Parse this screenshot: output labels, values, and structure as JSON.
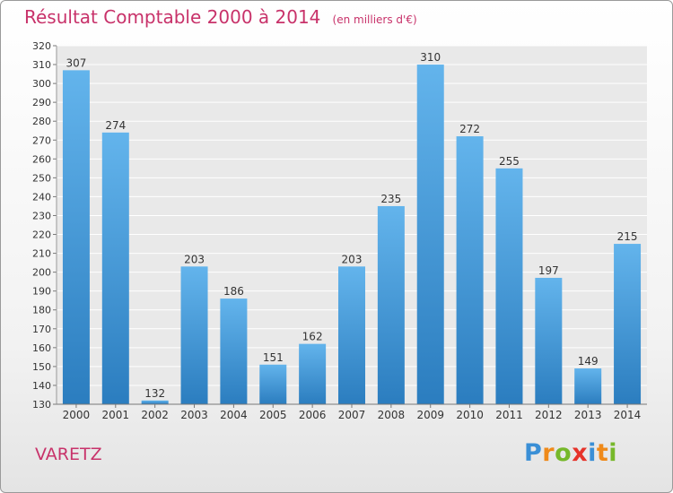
{
  "chart_data": {
    "type": "bar",
    "title": "Résultat Comptable 2000 à 2014",
    "subtitle": "(en milliers d'€)",
    "categories": [
      "2000",
      "2001",
      "2002",
      "2003",
      "2004",
      "2005",
      "2006",
      "2007",
      "2008",
      "2009",
      "2010",
      "2011",
      "2012",
      "2013",
      "2014"
    ],
    "values": [
      307,
      274,
      132,
      203,
      186,
      151,
      162,
      203,
      235,
      310,
      272,
      255,
      197,
      149,
      215
    ],
    "ylim": [
      130,
      320
    ],
    "ytick_step": 10,
    "xlabel": "",
    "ylabel": "",
    "grid": true,
    "colors": {
      "bar_light": "#63b4ec",
      "bar_dark": "#2b7dbf",
      "title": "#c8326a"
    }
  },
  "location": "VARETZ",
  "brand": {
    "name": "Proxiti",
    "letters": [
      {
        "char": "P",
        "color": "#3a8fd6"
      },
      {
        "char": "r",
        "color": "#ef8a1a"
      },
      {
        "char": "o",
        "color": "#76b82a"
      },
      {
        "char": "x",
        "color": "#e6332a"
      },
      {
        "char": "i",
        "color": "#3a8fd6"
      },
      {
        "char": "t",
        "color": "#ef8a1a"
      },
      {
        "char": "i",
        "color": "#76b82a"
      }
    ]
  }
}
